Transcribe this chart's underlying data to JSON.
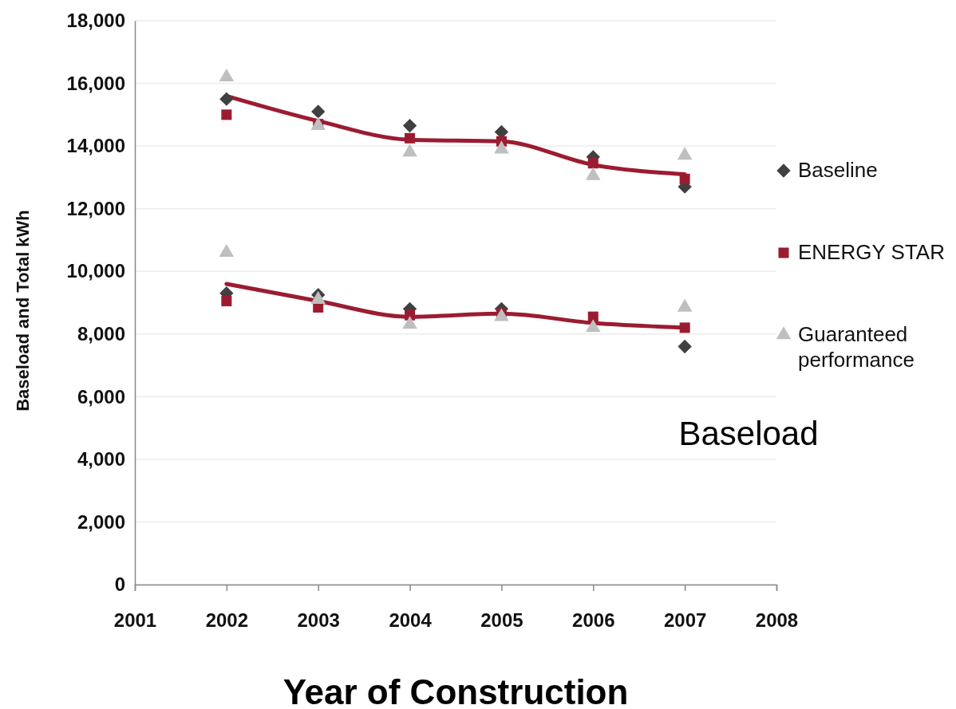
{
  "chart_data": {
    "type": "scatter",
    "xlabel": "Year of Construction",
    "ylabel": "Baseload and Total kWh",
    "xlim": [
      2001,
      2008
    ],
    "xticks": [
      2001,
      2002,
      2003,
      2004,
      2005,
      2006,
      2007,
      2008
    ],
    "ylim": [
      0,
      18000
    ],
    "yticks": [
      {
        "value": 0,
        "label": "0"
      },
      {
        "value": 2000,
        "label": "2,000"
      },
      {
        "value": 4000,
        "label": "4,000"
      },
      {
        "value": 6000,
        "label": "6,000"
      },
      {
        "value": 8000,
        "label": "8,000"
      },
      {
        "value": 10000,
        "label": "10,000"
      },
      {
        "value": 12000,
        "label": "12,000"
      },
      {
        "value": 14000,
        "label": "14,000"
      },
      {
        "value": 16000,
        "label": "16,000"
      },
      {
        "value": 18000,
        "label": "18,000"
      }
    ],
    "grid": "y",
    "legend": "right",
    "series": [
      {
        "type": "line",
        "color": "#9b1c31",
        "line_style": "solid",
        "marker": "none",
        "x": [
          2002,
          2003,
          2004,
          2005,
          2006,
          2007
        ],
        "values": [
          15600,
          14800,
          14200,
          14150,
          13400,
          13100
        ]
      },
      {
        "type": "line",
        "color": "#9b1c31",
        "line_style": "solid",
        "marker": "none",
        "x": [
          2002,
          2003,
          2004,
          2005,
          2006,
          2007
        ],
        "values": [
          9600,
          9050,
          8550,
          8650,
          8350,
          8200
        ]
      },
      {
        "name": "Baseline",
        "color": "#404040",
        "marker": "diamond",
        "x": [
          2002,
          2003,
          2004,
          2005,
          2006,
          2007,
          2002,
          2003,
          2004,
          2005,
          2006,
          2007
        ],
        "values": [
          15500,
          15100,
          14650,
          14450,
          13650,
          12700,
          9300,
          9250,
          8800,
          8800,
          null,
          7600
        ]
      },
      {
        "name": "ENERGY STAR",
        "color": "#9b1c31",
        "marker": "square",
        "x": [
          2002,
          2003,
          2004,
          2005,
          2006,
          2007,
          2002,
          2003,
          2004,
          2005,
          2006,
          2007
        ],
        "values": [
          15000,
          14700,
          14250,
          14150,
          13450,
          12950,
          9050,
          8850,
          8600,
          8650,
          8550,
          8200
        ]
      },
      {
        "name": "Guaranteed performance",
        "color": "#bfbfbf",
        "marker": "triangle",
        "x": [
          2002,
          2003,
          2004,
          2005,
          2006,
          2007,
          2002,
          2003,
          2004,
          2005,
          2006,
          2007
        ],
        "values": [
          16200,
          14650,
          13800,
          13900,
          13050,
          13700,
          10600,
          9100,
          8300,
          8550,
          8200,
          8850
        ]
      }
    ],
    "annotations": [
      "Baseload"
    ]
  }
}
